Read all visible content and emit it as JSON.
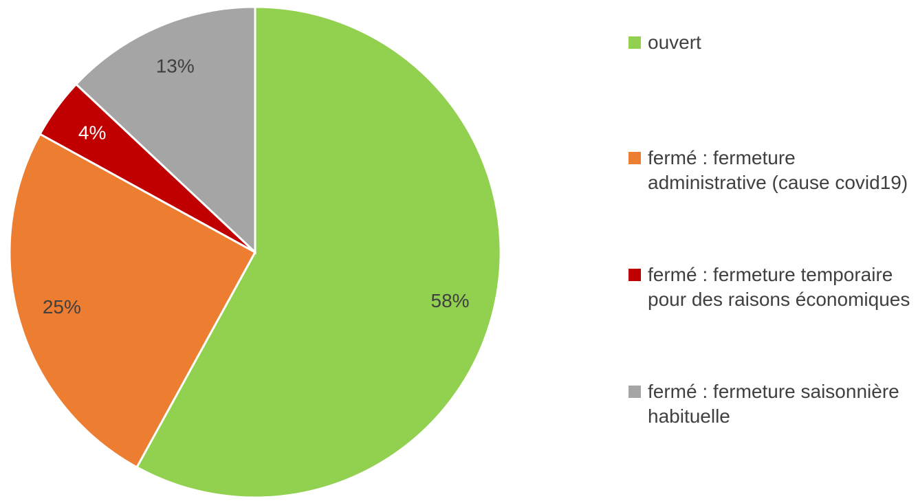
{
  "chart_data": {
    "type": "pie",
    "categories": [
      "ouvert",
      "fermé : fermeture administrative (cause covid19)",
      "fermé : fermeture temporaire pour des raisons économiques",
      "fermé : fermeture saisonnière habituelle"
    ],
    "values": [
      58,
      25,
      4,
      13
    ],
    "value_labels": [
      "58%",
      "25%",
      "4%",
      "13%"
    ],
    "colors": [
      "#92d050",
      "#ed7d31",
      "#c00000",
      "#a5a5a5"
    ],
    "legend": "right"
  }
}
